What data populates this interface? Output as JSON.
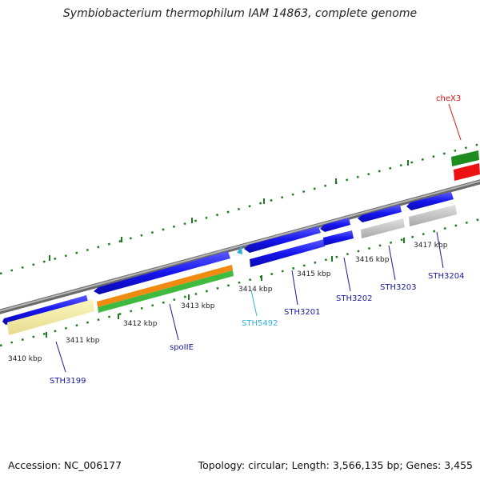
{
  "title": "Symbiobacterium thermophilum IAM 14863, complete genome",
  "footer": {
    "accession": "Accession: NC_006177",
    "summary": "Topology: circular; Length: 3,566,135 bp; Genes: 3,455"
  },
  "colors": {
    "backbone": "#8a8a8a",
    "tick": "#1f7a1f",
    "gene": "#1a1ae6",
    "gene_label": "#1a1aa0",
    "rna_label": "#35aee0",
    "other_label": "#dd1111"
  },
  "scale": {
    "unit": "kbp",
    "ticks": [
      "3410 kbp",
      "3411 kbp",
      "3412 kbp",
      "3413 kbp",
      "3414 kbp",
      "3415 kbp",
      "3416 kbp",
      "3417 kbp"
    ]
  },
  "genes": [
    {
      "name": "STH3199",
      "color": "#1a1aa0"
    },
    {
      "name": "spoIIE",
      "color": "#1a1aa0"
    },
    {
      "name": "STH5492",
      "color": "#35aee0"
    },
    {
      "name": "STH3201",
      "color": "#1a1aa0"
    },
    {
      "name": "STH3202",
      "color": "#1a1aa0"
    },
    {
      "name": "STH3203",
      "color": "#1a1aa0"
    },
    {
      "name": "STH3204",
      "color": "#1a1aa0"
    },
    {
      "name": "cheX3",
      "color": "#dd1111"
    }
  ]
}
